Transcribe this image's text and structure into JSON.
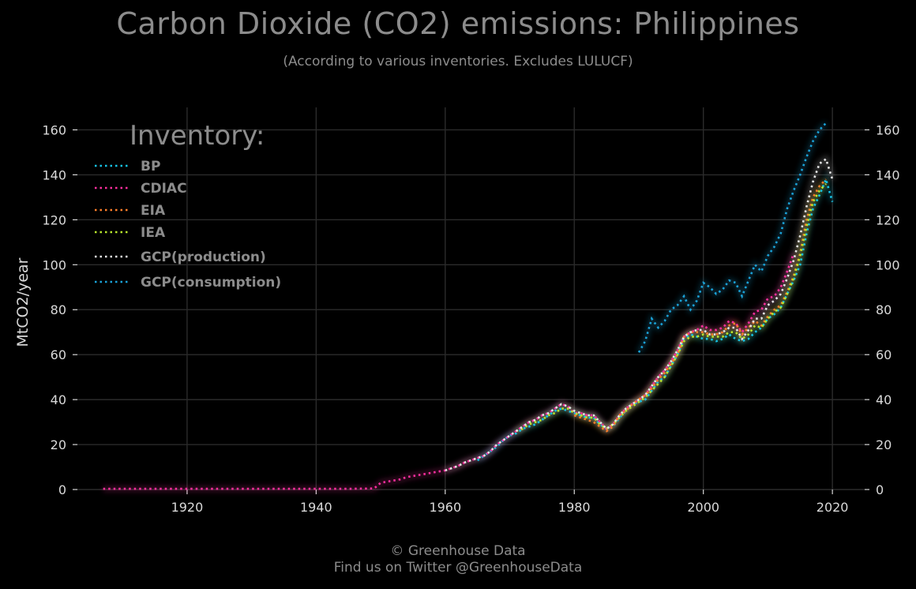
{
  "header": {
    "title": "Carbon Dioxide (CO2) emissions: Philippines",
    "subtitle": "(According to various inventories. Excludes LULUCF)"
  },
  "footer": {
    "line1": "© Greenhouse Data",
    "line2": "Find us on Twitter @GreenhouseData"
  },
  "chart_data": {
    "type": "line",
    "title": "Carbon Dioxide (CO2) emissions: Philippines",
    "subtitle": "(According to various inventories. Excludes LULUCF)",
    "ylabel": "MtCO2/year",
    "xlim": [
      1903,
      2025
    ],
    "ylim": [
      0,
      170
    ],
    "xticks": [
      1920,
      1940,
      1960,
      1980,
      2000,
      2020
    ],
    "yticks": [
      0,
      20,
      40,
      60,
      80,
      100,
      120,
      140,
      160
    ],
    "grid": true,
    "legend_title": "Inventory:",
    "legend_position": "top-left",
    "series": [
      {
        "name": "BP",
        "color": "#17c3e6",
        "x": [
          1965,
          1966,
          1967,
          1968,
          1969,
          1970,
          1971,
          1972,
          1973,
          1974,
          1975,
          1976,
          1977,
          1978,
          1979,
          1980,
          1981,
          1982,
          1983,
          1984,
          1985,
          1986,
          1987,
          1988,
          1989,
          1990,
          1991,
          1992,
          1993,
          1994,
          1995,
          1996,
          1997,
          1998,
          1999,
          2000,
          2001,
          2002,
          2003,
          2004,
          2005,
          2006,
          2007,
          2008,
          2009,
          2010,
          2011,
          2012,
          2013,
          2014,
          2015,
          2016,
          2017,
          2018,
          2019,
          2020
        ],
        "y": [
          13,
          15,
          17,
          19,
          22,
          24,
          25,
          27,
          28,
          29,
          31,
          33,
          35,
          36,
          35,
          34,
          33,
          32,
          32,
          29,
          27,
          28,
          32,
          35,
          38,
          39,
          40,
          44,
          48,
          50,
          55,
          60,
          67,
          69,
          68,
          67,
          67,
          66,
          67,
          69,
          67,
          66,
          67,
          70,
          72,
          76,
          78,
          81,
          87,
          93,
          100,
          114,
          125,
          131,
          138,
          128
        ]
      },
      {
        "name": "CDIAC",
        "color": "#ff2fa0",
        "x": [
          1907,
          1910,
          1915,
          1920,
          1925,
          1930,
          1935,
          1940,
          1945,
          1949,
          1950,
          1951,
          1952,
          1953,
          1954,
          1955,
          1956,
          1957,
          1958,
          1959,
          1960,
          1961,
          1962,
          1963,
          1964,
          1965,
          1966,
          1967,
          1968,
          1969,
          1970,
          1971,
          1972,
          1973,
          1974,
          1975,
          1976,
          1977,
          1978,
          1979,
          1980,
          1981,
          1982,
          1983,
          1984,
          1985,
          1986,
          1987,
          1988,
          1989,
          1990,
          1991,
          1992,
          1993,
          1994,
          1995,
          1996,
          1997,
          1998,
          1999,
          2000,
          2001,
          2002,
          2003,
          2004,
          2005,
          2006,
          2007,
          2008,
          2009,
          2010,
          2011,
          2012,
          2013,
          2014
        ],
        "y": [
          0.3,
          0.3,
          0.3,
          0.3,
          0.3,
          0.3,
          0.3,
          0.3,
          0.3,
          0.5,
          3,
          3.5,
          4,
          4.5,
          5.5,
          6,
          6.5,
          7,
          7.5,
          8,
          8.5,
          9.5,
          10.5,
          12,
          13,
          14,
          15,
          17,
          20,
          22,
          24,
          26,
          28,
          30,
          31,
          33,
          34,
          36,
          38,
          37,
          34,
          34,
          33,
          33,
          30,
          27,
          29,
          33,
          36,
          38,
          40,
          42,
          46,
          50,
          53,
          57,
          62,
          68,
          70,
          71,
          73,
          71,
          71,
          72,
          75,
          74,
          70,
          74,
          79,
          80,
          85,
          86,
          90,
          97,
          105
        ]
      },
      {
        "name": "EIA",
        "color": "#ff7f2a",
        "x": [
          1980,
          1981,
          1982,
          1983,
          1984,
          1985,
          1986,
          1987,
          1988,
          1989,
          1990,
          1991,
          1992,
          1993,
          1994,
          1995,
          1996,
          1997,
          1998,
          1999,
          2000,
          2001,
          2002,
          2003,
          2004,
          2005,
          2006,
          2007,
          2008,
          2009,
          2010,
          2011,
          2012,
          2013,
          2014,
          2015,
          2016,
          2017,
          2018,
          2019
        ],
        "y": [
          33,
          32,
          31,
          30,
          28,
          26,
          28,
          33,
          35,
          38,
          40,
          42,
          45,
          49,
          52,
          56,
          60,
          68,
          70,
          70,
          70,
          69,
          69,
          70,
          73,
          74,
          69,
          72,
          75,
          73,
          77,
          80,
          82,
          88,
          95,
          105,
          120,
          130,
          135,
          138
        ]
      },
      {
        "name": "IEA",
        "color": "#b8e62c",
        "x": [
          1971,
          1972,
          1973,
          1974,
          1975,
          1976,
          1977,
          1978,
          1979,
          1980,
          1981,
          1982,
          1983,
          1984,
          1985,
          1986,
          1987,
          1988,
          1989,
          1990,
          1991,
          1992,
          1993,
          1994,
          1995,
          1996,
          1997,
          1998,
          1999,
          2000,
          2001,
          2002,
          2003,
          2004,
          2005,
          2006,
          2007,
          2008,
          2009,
          2010,
          2011,
          2012,
          2013,
          2014,
          2015,
          2016,
          2017,
          2018,
          2019
        ],
        "y": [
          26,
          27,
          29,
          30,
          31,
          33,
          34,
          36,
          36,
          34,
          33,
          32,
          32,
          29,
          27,
          29,
          32,
          35,
          37,
          39,
          41,
          44,
          47,
          50,
          55,
          60,
          66,
          68,
          68,
          69,
          68,
          68,
          68,
          70,
          70,
          67,
          69,
          73,
          72,
          76,
          79,
          81,
          87,
          94,
          104,
          117,
          128,
          133,
          136
        ]
      },
      {
        "name": "GCP(production)",
        "color": "#e6e6e6",
        "x": [
          1960,
          1961,
          1962,
          1963,
          1964,
          1965,
          1966,
          1967,
          1968,
          1969,
          1970,
          1971,
          1972,
          1973,
          1974,
          1975,
          1976,
          1977,
          1978,
          1979,
          1980,
          1981,
          1982,
          1983,
          1984,
          1985,
          1986,
          1987,
          1988,
          1989,
          1990,
          1991,
          1992,
          1993,
          1994,
          1995,
          1996,
          1997,
          1998,
          1999,
          2000,
          2001,
          2002,
          2003,
          2004,
          2005,
          2006,
          2007,
          2008,
          2009,
          2010,
          2011,
          2012,
          2013,
          2014,
          2015,
          2016,
          2017,
          2018,
          2019,
          2020
        ],
        "y": [
          8.5,
          9.5,
          10.5,
          12,
          13,
          14,
          15,
          17,
          20,
          22,
          24,
          26,
          28,
          30,
          31,
          33,
          34,
          36,
          38,
          37,
          35,
          34,
          33,
          33,
          30,
          27,
          29,
          33,
          36,
          38,
          40,
          42,
          46,
          50,
          53,
          57,
          62,
          68,
          70,
          71,
          71,
          69,
          69,
          70,
          72,
          72,
          67,
          71,
          76,
          76,
          82,
          84,
          87,
          94,
          102,
          113,
          126,
          137,
          145,
          147,
          138
        ]
      },
      {
        "name": "GCP(consumption)",
        "color": "#1aa3d9",
        "x": [
          1990,
          1991,
          1992,
          1993,
          1994,
          1995,
          1996,
          1997,
          1998,
          1999,
          2000,
          2001,
          2002,
          2003,
          2004,
          2005,
          2006,
          2007,
          2008,
          2009,
          2010,
          2011,
          2012,
          2013,
          2014,
          2015,
          2016,
          2017,
          2018,
          2019
        ],
        "y": [
          61,
          66,
          76,
          72,
          75,
          80,
          82,
          86,
          80,
          84,
          92,
          90,
          87,
          89,
          93,
          92,
          86,
          93,
          100,
          97,
          104,
          108,
          114,
          125,
          133,
          140,
          148,
          155,
          160,
          163
        ]
      }
    ]
  }
}
